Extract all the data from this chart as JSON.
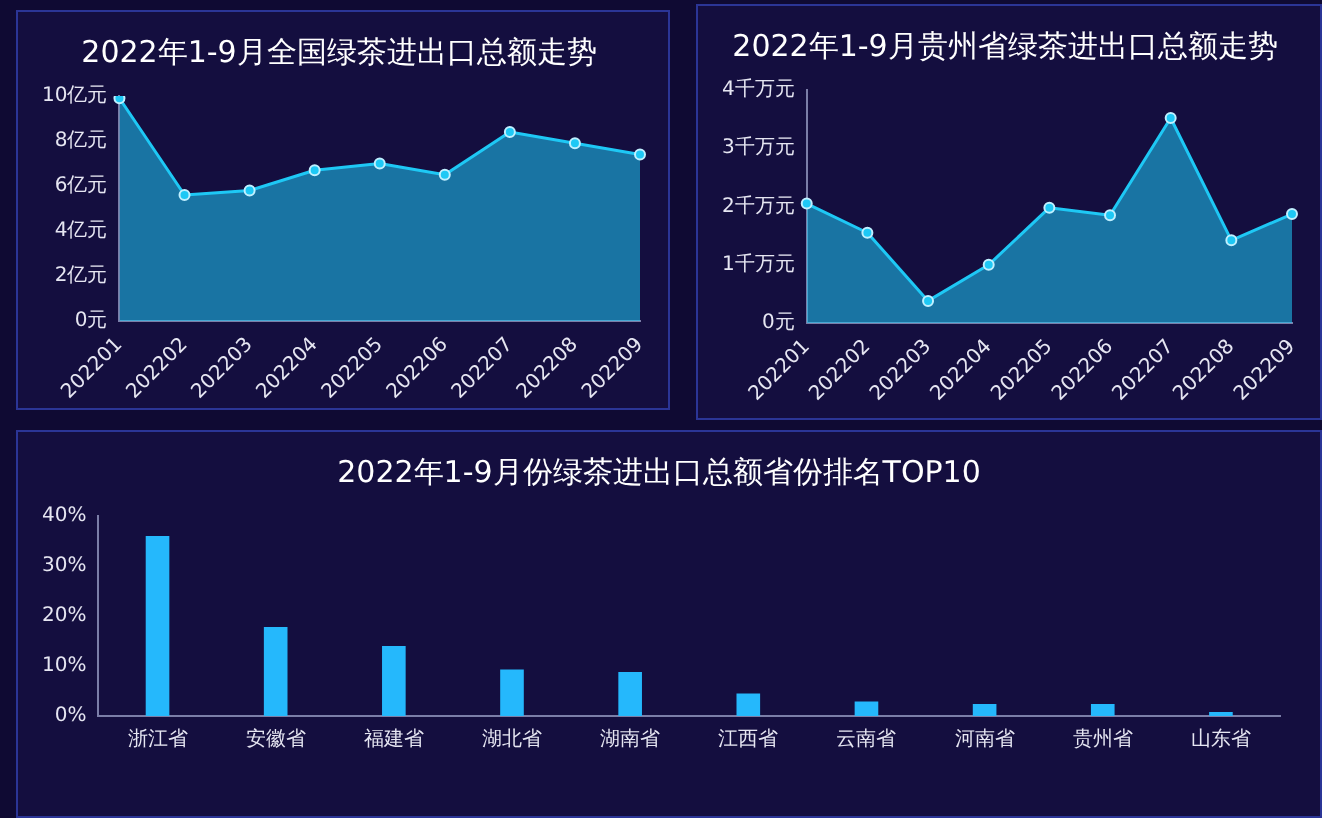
{
  "chart_data": [
    {
      "type": "area",
      "title": "2022年1-9月全国绿茶进出口总额走势",
      "categories": [
        "202201",
        "202202",
        "202203",
        "202204",
        "202205",
        "202206",
        "202207",
        "202208",
        "202209"
      ],
      "series": [
        {
          "color": "#1ec8f5",
          "values": [
            9.9,
            5.6,
            5.8,
            6.7,
            7.0,
            6.5,
            8.4,
            7.9,
            7.4
          ]
        }
      ],
      "ylim": [
        0,
        10
      ],
      "yticks": [
        {
          "value": 0,
          "label": "0元"
        },
        {
          "value": 2,
          "label": "2亿元"
        },
        {
          "value": 4,
          "label": "4亿元"
        },
        {
          "value": 6,
          "label": "6亿元"
        },
        {
          "value": 8,
          "label": "8亿元"
        },
        {
          "value": 10,
          "label": "10亿元"
        }
      ],
      "grid": false,
      "legend": false,
      "marker": "circle"
    },
    {
      "type": "area",
      "title": "2022年1-9月贵州省绿茶进出口总额走势",
      "categories": [
        "202201",
        "202202",
        "202203",
        "202204",
        "202205",
        "202206",
        "202207",
        "202208",
        "202209"
      ],
      "series": [
        {
          "color": "#1ec8f5",
          "values": [
            2.05,
            1.55,
            0.38,
            1.0,
            1.98,
            1.85,
            3.52,
            1.42,
            1.87
          ]
        }
      ],
      "ylim": [
        0,
        4
      ],
      "yticks": [
        {
          "value": 0,
          "label": "0元"
        },
        {
          "value": 1,
          "label": "1千万元"
        },
        {
          "value": 2,
          "label": "2千万元"
        },
        {
          "value": 3,
          "label": "3千万元"
        },
        {
          "value": 4,
          "label": "4千万元"
        }
      ],
      "grid": false,
      "legend": false,
      "marker": "circle"
    },
    {
      "type": "bar",
      "title": "2022年1-9月份绿茶进出口总额省份排名TOP10",
      "categories": [
        "浙江省",
        "安徽省",
        "福建省",
        "湖北省",
        "湖南省",
        "江西省",
        "云南省",
        "河南省",
        "贵州省",
        "山东省"
      ],
      "series": [
        {
          "color": "#25b8fc",
          "values": [
            36,
            17.8,
            14,
            9.3,
            8.8,
            4.5,
            2.9,
            2.4,
            2.4,
            0.8
          ]
        }
      ],
      "ylim": [
        0,
        40
      ],
      "yticks": [
        {
          "value": 0,
          "label": "0%"
        },
        {
          "value": 10,
          "label": "10%"
        },
        {
          "value": 20,
          "label": "20%"
        },
        {
          "value": 30,
          "label": "30%"
        },
        {
          "value": 40,
          "label": "40%"
        }
      ],
      "grid": false,
      "legend": false
    }
  ]
}
